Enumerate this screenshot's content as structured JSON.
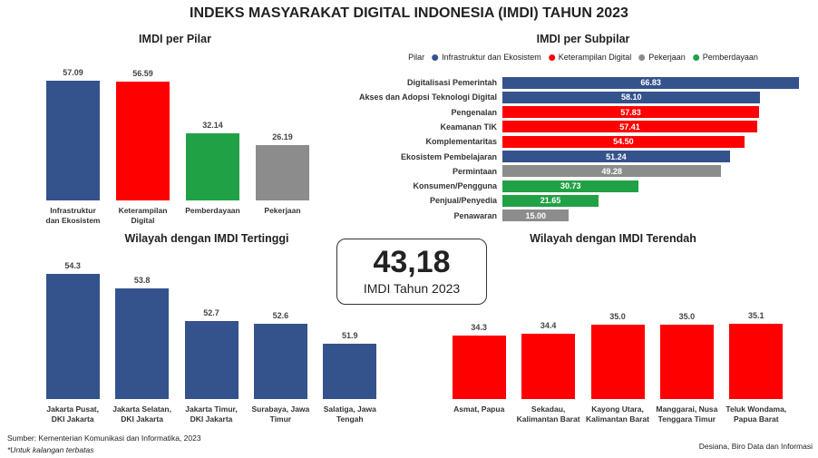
{
  "title": "INDEKS MASYARAKAT DIGITAL INDONESIA (IMDI) TAHUN 2023",
  "kpi": {
    "value": "43,18",
    "label": "IMDI Tahun 2023"
  },
  "source": "Sumber: Kementerian Komunikasi dan Informatika, 2023",
  "note": "*Untuk kalangan terbatas",
  "credit": "Desiana, Biro Data dan Informasi",
  "chart_data": [
    {
      "type": "bar",
      "title": "IMDI per Pilar",
      "categories": [
        "Infrastruktur\ndan Ekosistem",
        "Keterampilan\nDigital",
        "Pemberdayaan",
        "Pekerjaan"
      ],
      "values": [
        57.09,
        56.59,
        32.14,
        26.19
      ],
      "colors": [
        "#34528c",
        "#ff0000",
        "#21a146",
        "#8c8c8c"
      ],
      "ylim": [
        0,
        60
      ]
    },
    {
      "type": "hbar",
      "title": "IMDI per Subpilar",
      "legend": {
        "title": "Pilar",
        "items": [
          {
            "name": "Infrastruktur dan Ekosistem",
            "color": "#34528c"
          },
          {
            "name": "Keterampilan Digital",
            "color": "#ff0000"
          },
          {
            "name": "Pekerjaan",
            "color": "#8c8c8c"
          },
          {
            "name": "Pemberdayaan",
            "color": "#21a146"
          }
        ]
      },
      "categories": [
        "Digitalisasi Pemerintah",
        "Akses dan Adopsi Teknologi Digital",
        "Pengenalan",
        "Keamanan TIK",
        "Komplementaritas",
        "Ekosistem Pembelajaran",
        "Permintaan",
        "Konsumen/Pengguna",
        "Penjual/Penyedia",
        "Penawaran"
      ],
      "values": [
        66.83,
        58.1,
        57.83,
        57.41,
        54.5,
        51.24,
        49.28,
        30.73,
        21.65,
        15
      ],
      "value_labels": [
        "66.83",
        "58.10",
        "57.83",
        "57.41",
        "54.50",
        "51.24",
        "49.28",
        "30.73",
        "21.65",
        "15.00"
      ],
      "colors": [
        "#34528c",
        "#34528c",
        "#ff0000",
        "#ff0000",
        "#ff0000",
        "#34528c",
        "#8c8c8c",
        "#21a146",
        "#21a146",
        "#8c8c8c"
      ],
      "xlim": [
        0,
        67
      ]
    },
    {
      "type": "bar",
      "title": "Wilayah dengan IMDI Tertinggi",
      "categories": [
        "Jakarta Pusat,\nDKI Jakarta",
        "Jakarta Selatan,\nDKI Jakarta",
        "Jakarta Timur,\nDKI Jakarta",
        "Surabaya, Jawa\nTimur",
        "Salatiga, Jawa\nTengah"
      ],
      "values": [
        54.3,
        53.8,
        52.7,
        52.6,
        51.9
      ],
      "color": "#34528c",
      "ylim": [
        50,
        55
      ]
    },
    {
      "type": "bar",
      "title": "Wilayah dengan IMDI Terendah",
      "categories": [
        "Asmat, Papua",
        "Sekadau,\nKalimantan Barat",
        "Kayong Utara,\nKalimantan Barat",
        "Manggarai, Nusa\nTenggara Timur",
        "Teluk Wondama,\nPapua Barat"
      ],
      "values": [
        34.3,
        34.4,
        35,
        35,
        35.1
      ],
      "value_labels": [
        "34.3",
        "34.4",
        "35.0",
        "35.0",
        "35.1"
      ],
      "color": "#ff0000",
      "ylim": [
        30,
        36
      ]
    }
  ]
}
